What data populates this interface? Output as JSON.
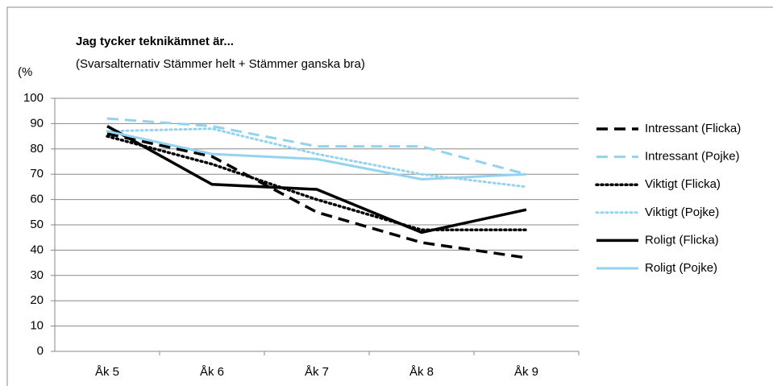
{
  "chart_data": {
    "type": "line",
    "title": "Jag tycker  teknikämnet är...",
    "subtitle": "(Svarsalternativ Stämmer helt + Stämmer ganska bra)",
    "y_label": "(%",
    "categories": [
      "Åk 5",
      "Åk 6",
      "Åk 7",
      "Åk 8",
      "Åk 9"
    ],
    "series": [
      {
        "name": "Intressant (Flicka)",
        "color": "#000000",
        "dash": "dashed",
        "values": [
          86,
          77,
          55,
          43,
          37
        ]
      },
      {
        "name": "Intressant (Pojke)",
        "color": "#93d3f0",
        "dash": "dashed",
        "values": [
          92,
          89,
          81,
          81,
          70
        ]
      },
      {
        "name": "Viktigt (Flicka)",
        "color": "#000000",
        "dash": "dotted",
        "values": [
          85,
          74,
          60,
          48,
          48
        ]
      },
      {
        "name": "Viktigt (Pojke)",
        "color": "#93d3f0",
        "dash": "dotted",
        "values": [
          87,
          88,
          78,
          70,
          65
        ]
      },
      {
        "name": "Roligt (Flicka)",
        "color": "#000000",
        "dash": "solid",
        "values": [
          89,
          66,
          64,
          47,
          56
        ]
      },
      {
        "name": "Roligt (Pojke)",
        "color": "#93d3f0",
        "dash": "solid",
        "values": [
          87,
          78,
          76,
          68,
          70
        ]
      }
    ],
    "ylim": [
      0,
      100
    ],
    "yticks": [
      0,
      10,
      20,
      30,
      40,
      50,
      60,
      70,
      80,
      90,
      100
    ],
    "grid": true,
    "legend": "right"
  }
}
